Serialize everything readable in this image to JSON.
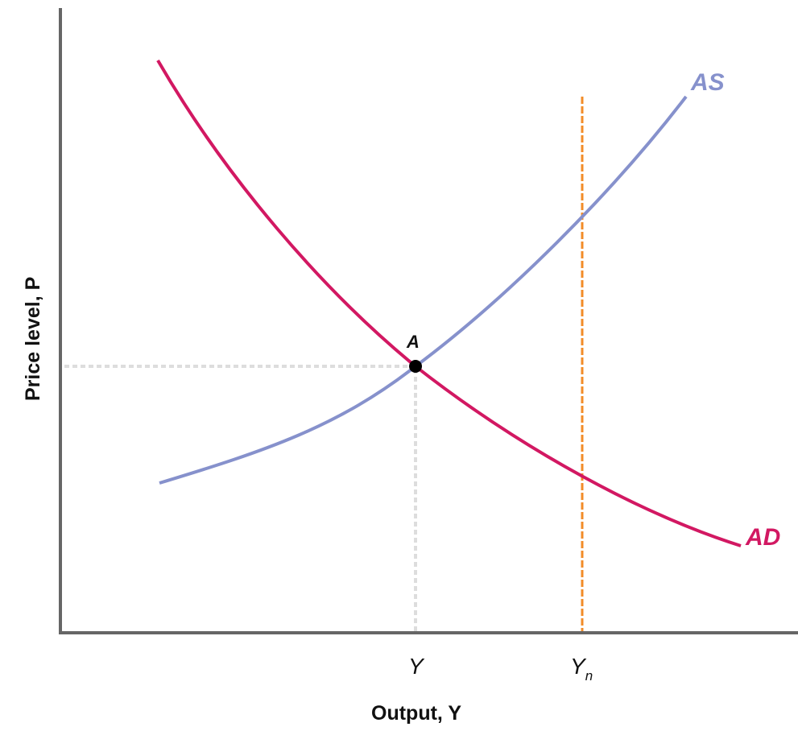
{
  "diagram": {
    "y_axis_title": "Price level, P",
    "x_axis_title": "Output, Y",
    "ad_label": "AD",
    "as_label": "AS",
    "point_label": "A",
    "tick_y": "Y",
    "tick_yn_main": "Y",
    "tick_yn_sub": "n"
  },
  "colors": {
    "ad": "#d21862",
    "as": "#8691cc",
    "potential_output": "#f28c28",
    "guide": "#dddddd",
    "axis": "#666666"
  }
}
